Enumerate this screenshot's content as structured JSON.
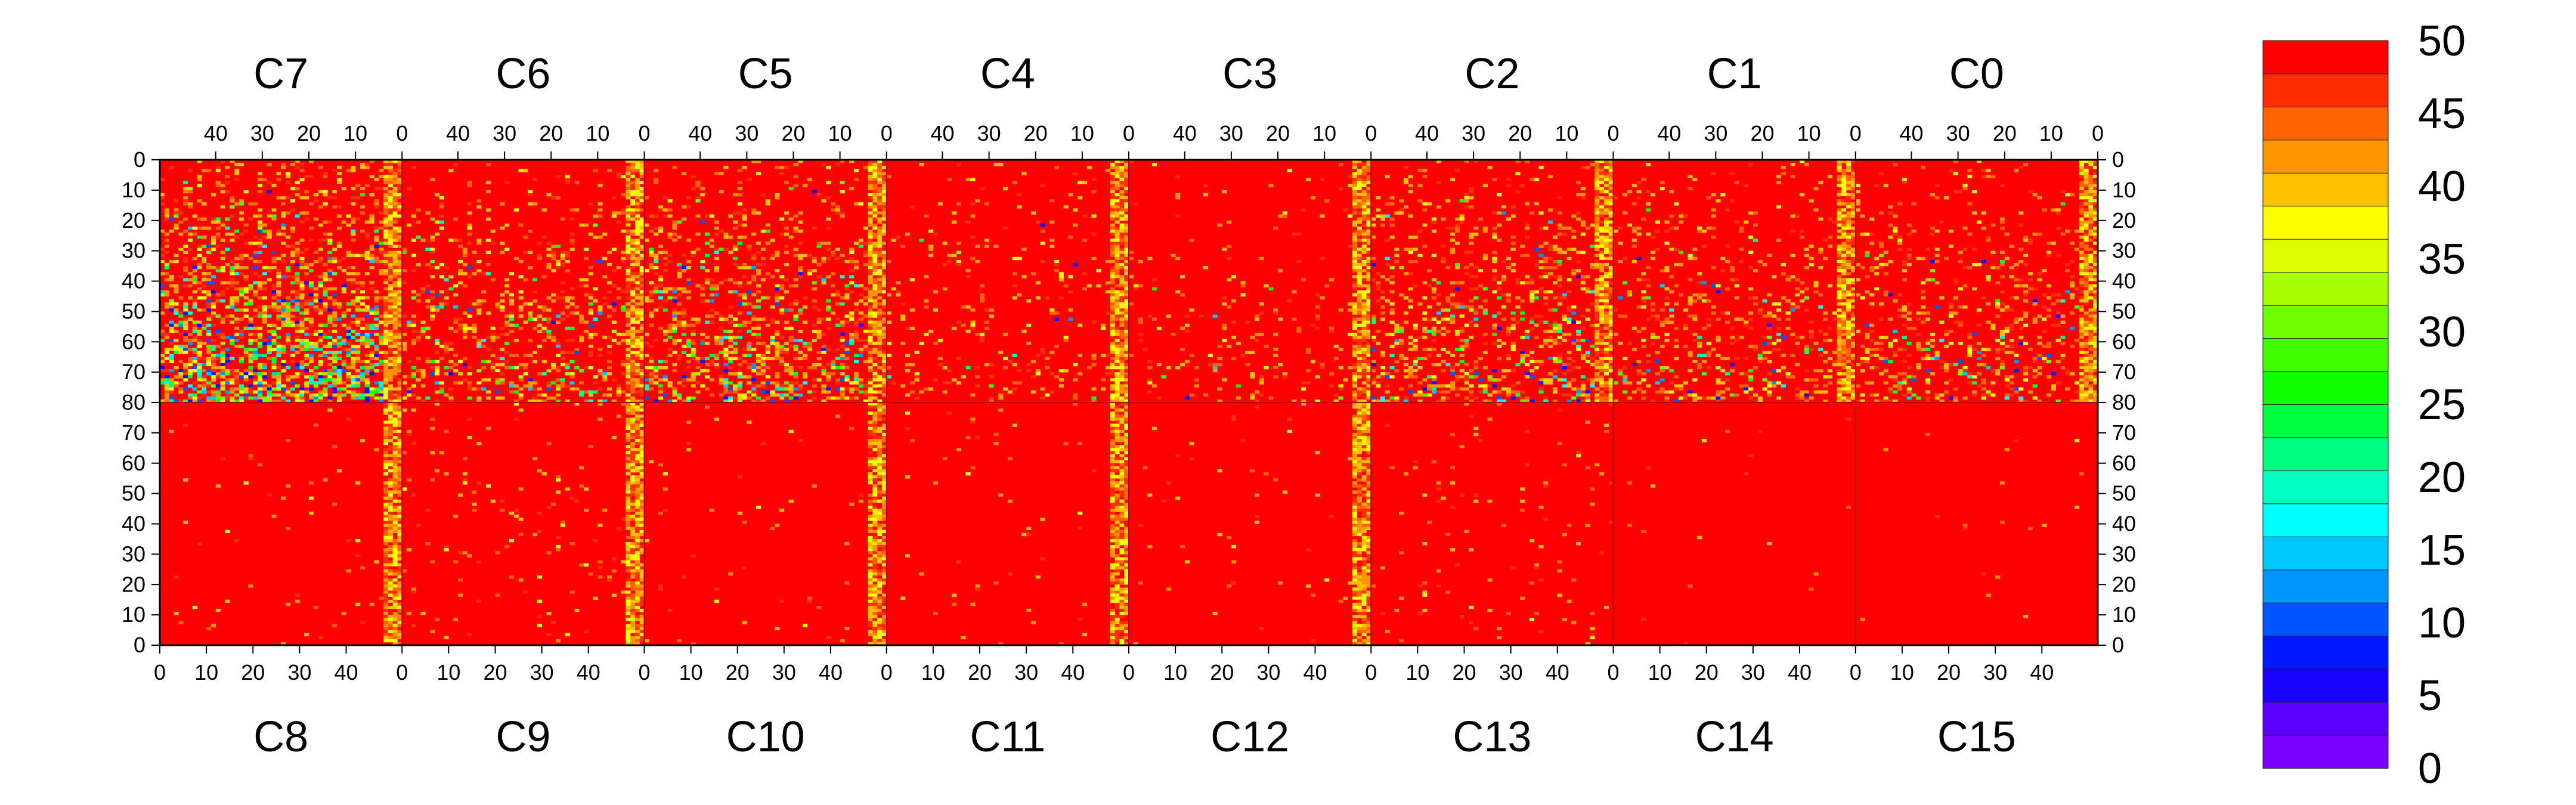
{
  "chart_data": {
    "type": "heatmap",
    "title": "",
    "top_chips": [
      "C7",
      "C6",
      "C5",
      "C4",
      "C3",
      "C2",
      "C1",
      "C0"
    ],
    "bottom_chips": [
      "C8",
      "C9",
      "C10",
      "C11",
      "C12",
      "C13",
      "C14",
      "C15"
    ],
    "chip_columns": 52,
    "top_x_ticks": [
      "40",
      "30",
      "20",
      "10",
      "0"
    ],
    "bottom_x_ticks": [
      "0",
      "10",
      "20",
      "30",
      "40"
    ],
    "top_x_tick_values": [
      40,
      30,
      20,
      10,
      0
    ],
    "bottom_x_tick_values": [
      0,
      10,
      20,
      30,
      40
    ],
    "y_ticks_upper": [
      "0",
      "10",
      "20",
      "30",
      "40",
      "50",
      "60",
      "70",
      "80"
    ],
    "y_ticks_lower": [
      "70",
      "60",
      "50",
      "40",
      "30",
      "20",
      "10",
      "0"
    ],
    "y_tick_values_upper": [
      0,
      10,
      20,
      30,
      40,
      50,
      60,
      70,
      80
    ],
    "y_tick_values_lower": [
      70,
      60,
      50,
      40,
      30,
      20,
      10,
      0
    ],
    "rows_per_half": 80,
    "colorbar": {
      "min": 0,
      "max": 50,
      "labels": [
        "50",
        "45",
        "40",
        "35",
        "30",
        "25",
        "20",
        "15",
        "10",
        "5",
        "0"
      ],
      "label_values": [
        50,
        45,
        40,
        35,
        30,
        25,
        20,
        15,
        10,
        5,
        0
      ],
      "colors": [
        "#7a00ff",
        "#5a00ff",
        "#1a00ff",
        "#0018ff",
        "#0055ff",
        "#0096ff",
        "#00c8ff",
        "#00ffff",
        "#00ffc0",
        "#00ff80",
        "#00ff40",
        "#10ff00",
        "#40ff00",
        "#70ff00",
        "#a8ff00",
        "#dcff00",
        "#ffff00",
        "#ffc000",
        "#ff9600",
        "#ff6400",
        "#ff2e00",
        "#ff0000"
      ]
    },
    "dominant_value": 50,
    "chips": {
      "C7": {
        "noise": 0.55,
        "band_edge": "right"
      },
      "C6": {
        "noise": 0.25,
        "band_edge": "right"
      },
      "C5": {
        "noise": 0.35,
        "band_edge": "right"
      },
      "C4": {
        "noise": 0.1,
        "band_edge": "right"
      },
      "C3": {
        "noise": 0.08,
        "band_edge": "right"
      },
      "C2": {
        "noise": 0.3,
        "band_edge": "right"
      },
      "C1": {
        "noise": 0.2,
        "band_edge": "right"
      },
      "C0": {
        "noise": 0.22,
        "band_edge": "right"
      },
      "C8": {
        "noise": 0.03,
        "band_edge": "right"
      },
      "C9": {
        "noise": 0.05,
        "band_edge": "right"
      },
      "C10": {
        "noise": 0.03,
        "band_edge": "right"
      },
      "C11": {
        "noise": 0.02,
        "band_edge": "right"
      },
      "C12": {
        "noise": 0.03,
        "band_edge": "right"
      },
      "C13": {
        "noise": 0.04,
        "band_edge": "none"
      },
      "C14": {
        "noise": 0.01,
        "band_edge": "none"
      },
      "C15": {
        "noise": 0.01,
        "band_edge": "none"
      }
    }
  }
}
